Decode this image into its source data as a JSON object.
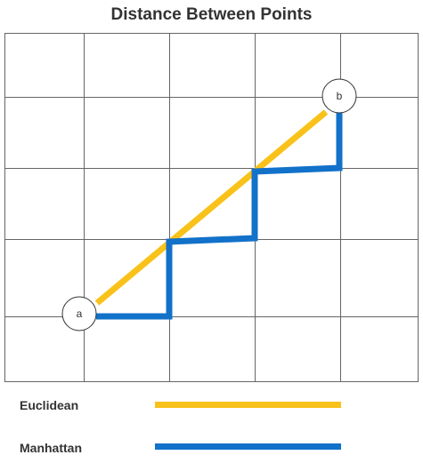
{
  "title": "Distance Between Points",
  "points": {
    "a": "a",
    "b": "b"
  },
  "legend": {
    "euclidean": "Euclidean",
    "manhattan": "Manhattan"
  },
  "colors": {
    "euclidean": "#F9C21A",
    "manhattan": "#1271C9",
    "grid": "#666666"
  }
}
